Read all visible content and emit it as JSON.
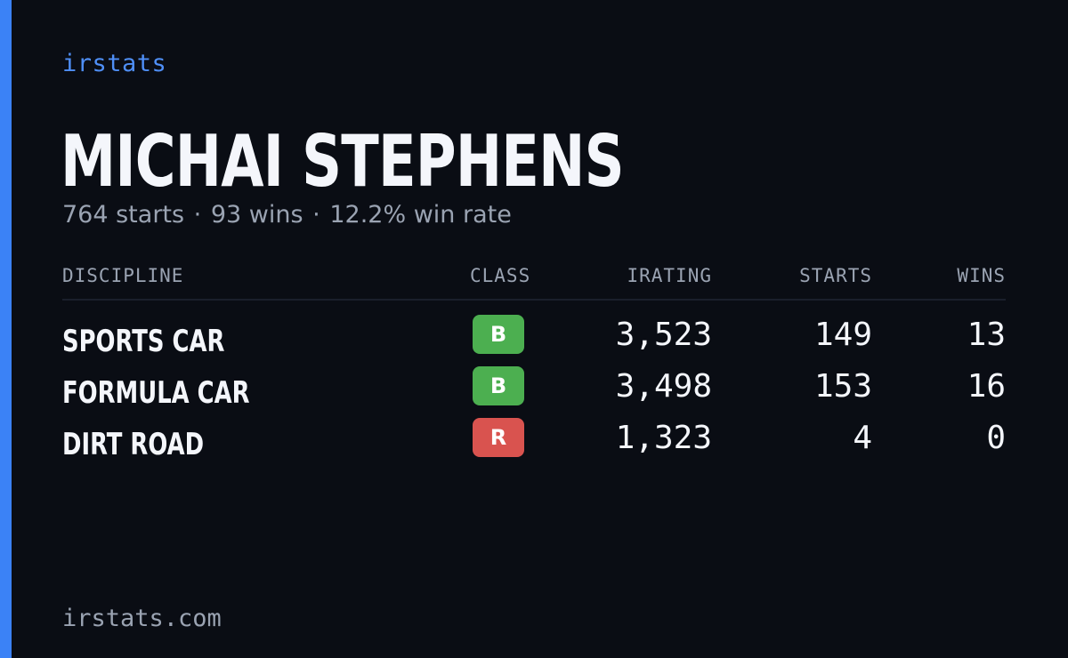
{
  "brand": "irstats",
  "driver": {
    "name": "MICHAI STEPHENS",
    "starts_text": "764 starts",
    "wins_text": "93 wins",
    "win_rate_text": "12.2% win rate",
    "separator": "·"
  },
  "table": {
    "headers": {
      "discipline": "DISCIPLINE",
      "class": "CLASS",
      "irating": "IRATING",
      "starts": "STARTS",
      "wins": "WINS"
    },
    "rows": [
      {
        "discipline": "SPORTS CAR",
        "class": "B",
        "class_color": "#4caf50",
        "irating": "3,523",
        "starts": "149",
        "wins": "13"
      },
      {
        "discipline": "FORMULA CAR",
        "class": "B",
        "class_color": "#4caf50",
        "irating": "3,498",
        "starts": "153",
        "wins": "16"
      },
      {
        "discipline": "DIRT ROAD",
        "class": "R",
        "class_color": "#d9534f",
        "irating": "1,323",
        "starts": "4",
        "wins": "0"
      }
    ]
  },
  "footer": "irstats.com",
  "colors": {
    "background": "#0a0d14",
    "accent": "#3b82f6",
    "brand": "#4f8ff7",
    "class_b": "#4caf50",
    "class_r": "#d9534f"
  }
}
